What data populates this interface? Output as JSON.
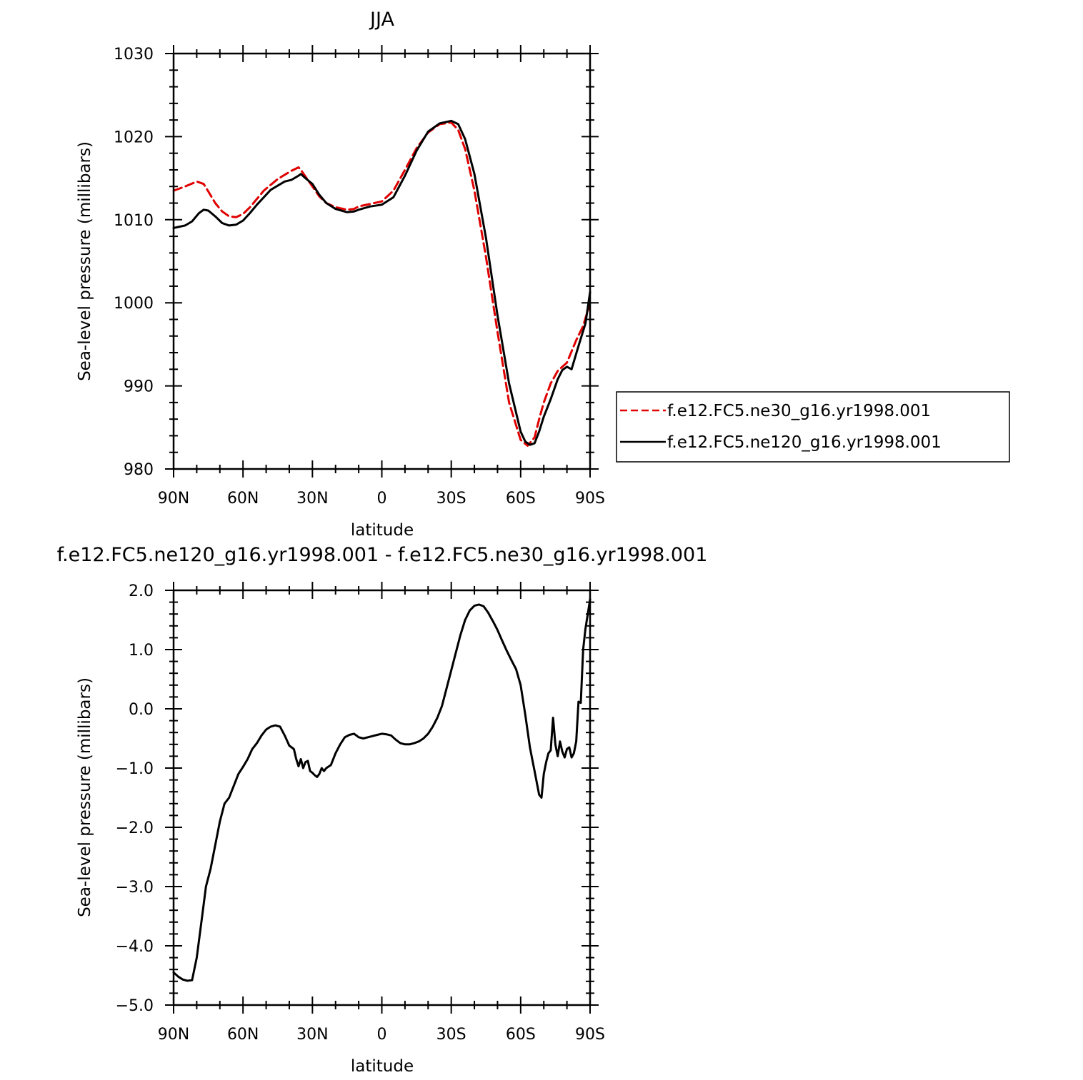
{
  "chart_data": [
    {
      "type": "line",
      "title": "JJA",
      "xlabel": "latitude",
      "ylabel": "Sea-level pressure (millibars)",
      "xlim": [
        90,
        -90
      ],
      "ylim": [
        980,
        1030
      ],
      "xticks": [
        90,
        60,
        30,
        0,
        -30,
        -60,
        -90
      ],
      "xtick_labels": [
        "90N",
        "60N",
        "30N",
        "0",
        "30S",
        "60S",
        "90S"
      ],
      "yticks": [
        980,
        990,
        1000,
        1010,
        1020,
        1030
      ],
      "ytick_labels": [
        "980",
        "990",
        "1000",
        "1010",
        "1020",
        "1030"
      ],
      "legend_position": "right",
      "series": [
        {
          "name": "f.e12.FC5.ne30_g16.yr1998.001",
          "color": "#e00000",
          "dash": "dashed",
          "x": [
            90,
            85,
            80,
            77,
            75,
            72,
            69,
            66,
            63,
            60,
            57,
            54,
            51,
            48,
            45,
            42,
            39,
            36,
            35,
            33,
            30,
            27,
            24,
            20,
            15,
            12,
            10,
            5,
            0,
            -5,
            -10,
            -15,
            -20,
            -25,
            -30,
            -33,
            -36,
            -40,
            -45,
            -50,
            -55,
            -60,
            -63,
            -66,
            -68,
            -70,
            -73,
            -76,
            -80,
            -84,
            -87,
            -90
          ],
          "values": [
            1013.5,
            1014.0,
            1014.6,
            1014.3,
            1013.4,
            1012.0,
            1011.0,
            1010.4,
            1010.3,
            1010.7,
            1011.5,
            1012.5,
            1013.5,
            1014.2,
            1014.9,
            1015.4,
            1015.9,
            1016.3,
            1016.0,
            1015.2,
            1014.0,
            1012.8,
            1012.0,
            1011.5,
            1011.2,
            1011.3,
            1011.6,
            1011.9,
            1012.2,
            1013.5,
            1016.0,
            1018.6,
            1020.5,
            1021.5,
            1021.7,
            1020.8,
            1018.5,
            1013.5,
            1005.5,
            996.5,
            988.0,
            983.5,
            982.8,
            983.8,
            986.0,
            988.0,
            990.3,
            991.8,
            992.8,
            995.5,
            997.2,
            1000.0
          ]
        },
        {
          "name": "f.e12.FC5.ne120_g16.yr1998.001",
          "color": "#000000",
          "dash": "solid",
          "x": [
            90,
            85,
            82,
            79,
            77,
            75,
            72,
            69,
            66,
            63,
            60,
            57,
            54,
            51,
            48,
            45,
            42,
            39,
            36,
            35,
            33,
            30,
            27,
            24,
            20,
            15,
            12,
            10,
            5,
            0,
            -5,
            -10,
            -15,
            -20,
            -25,
            -30,
            -33,
            -36,
            -40,
            -45,
            -50,
            -55,
            -60,
            -62,
            -64,
            -66,
            -68,
            -70,
            -73,
            -76,
            -78,
            -80,
            -82,
            -85,
            -88,
            -90
          ],
          "values": [
            1009.0,
            1009.3,
            1009.8,
            1010.8,
            1011.2,
            1011.1,
            1010.4,
            1009.6,
            1009.3,
            1009.4,
            1009.9,
            1010.8,
            1011.8,
            1012.7,
            1013.6,
            1014.1,
            1014.6,
            1014.8,
            1015.3,
            1015.5,
            1015.0,
            1014.3,
            1013.0,
            1012.0,
            1011.3,
            1010.9,
            1011.0,
            1011.2,
            1011.6,
            1011.8,
            1012.7,
            1015.3,
            1018.3,
            1020.6,
            1021.6,
            1021.9,
            1021.5,
            1019.7,
            1015.5,
            1007.8,
            998.5,
            990.3,
            984.5,
            983.3,
            982.9,
            983.1,
            984.5,
            986.3,
            988.4,
            990.8,
            991.9,
            992.3,
            992.0,
            994.8,
            997.5,
            1001.3
          ]
        }
      ]
    },
    {
      "type": "line",
      "title": "f.e12.FC5.ne120_g16.yr1998.001 - f.e12.FC5.ne30_g16.yr1998.001",
      "xlabel": "latitude",
      "ylabel": "Sea-level pressure (millibars)",
      "xlim": [
        90,
        -90
      ],
      "ylim": [
        -5.0,
        2.0
      ],
      "xticks": [
        90,
        60,
        30,
        0,
        -30,
        -60,
        -90
      ],
      "xtick_labels": [
        "90N",
        "60N",
        "30N",
        "0",
        "30S",
        "60S",
        "90S"
      ],
      "yticks": [
        -5.0,
        -4.0,
        -3.0,
        -2.0,
        -1.0,
        0.0,
        1.0,
        2.0
      ],
      "ytick_labels": [
        "−5.0",
        "−4.0",
        "−3.0",
        "−2.0",
        "−1.0",
        "0.0",
        "1.0",
        "2.0"
      ],
      "series": [
        {
          "name": "",
          "color": "#000000",
          "dash": "solid",
          "x": [
            90,
            88,
            86,
            84,
            82,
            80,
            78,
            76,
            74,
            72,
            70,
            68,
            66,
            64,
            62,
            60,
            58,
            56,
            54,
            52,
            50,
            48,
            46,
            44,
            42,
            40,
            39,
            38,
            37,
            36,
            35,
            34,
            33,
            32,
            31,
            30,
            29,
            28,
            27,
            26,
            25,
            24,
            22,
            20,
            18,
            16,
            14,
            12,
            10,
            8,
            6,
            4,
            2,
            0,
            -2,
            -4,
            -6,
            -8,
            -10,
            -12,
            -14,
            -16,
            -18,
            -20,
            -22,
            -24,
            -26,
            -28,
            -30,
            -32,
            -34,
            -36,
            -38,
            -40,
            -42,
            -44,
            -46,
            -47,
            -48,
            -50,
            -52,
            -54,
            -56,
            -58,
            -60,
            -62,
            -64,
            -65,
            -66,
            -67,
            -68,
            -69,
            -70,
            -71,
            -72,
            -73,
            -74,
            -75,
            -76,
            -77,
            -78,
            -79,
            -80,
            -81,
            -82,
            -83,
            -84,
            -85,
            -86,
            -87,
            -88,
            -89,
            -90
          ],
          "values": [
            -4.45,
            -4.52,
            -4.57,
            -4.59,
            -4.58,
            -4.2,
            -3.6,
            -3.0,
            -2.7,
            -2.3,
            -1.9,
            -1.6,
            -1.5,
            -1.3,
            -1.1,
            -0.98,
            -0.85,
            -0.68,
            -0.58,
            -0.45,
            -0.35,
            -0.3,
            -0.28,
            -0.3,
            -0.45,
            -0.62,
            -0.65,
            -0.68,
            -0.85,
            -0.97,
            -0.85,
            -1.0,
            -0.9,
            -0.88,
            -1.05,
            -1.08,
            -1.12,
            -1.15,
            -1.1,
            -1.0,
            -1.05,
            -1.0,
            -0.95,
            -0.75,
            -0.6,
            -0.48,
            -0.44,
            -0.42,
            -0.48,
            -0.5,
            -0.48,
            -0.46,
            -0.44,
            -0.42,
            -0.43,
            -0.45,
            -0.52,
            -0.58,
            -0.6,
            -0.6,
            -0.58,
            -0.55,
            -0.5,
            -0.42,
            -0.3,
            -0.15,
            0.05,
            0.35,
            0.65,
            0.95,
            1.25,
            1.5,
            1.66,
            1.74,
            1.76,
            1.73,
            1.62,
            1.55,
            1.48,
            1.33,
            1.15,
            0.98,
            0.82,
            0.67,
            0.4,
            -0.1,
            -0.65,
            -0.85,
            -1.05,
            -1.25,
            -1.45,
            -1.5,
            -1.1,
            -0.9,
            -0.75,
            -0.7,
            -0.15,
            -0.6,
            -0.8,
            -0.55,
            -0.72,
            -0.82,
            -0.68,
            -0.65,
            -0.82,
            -0.75,
            -0.55,
            0.12,
            0.1,
            1.0,
            1.35,
            1.6,
            1.85
          ]
        }
      ]
    }
  ]
}
